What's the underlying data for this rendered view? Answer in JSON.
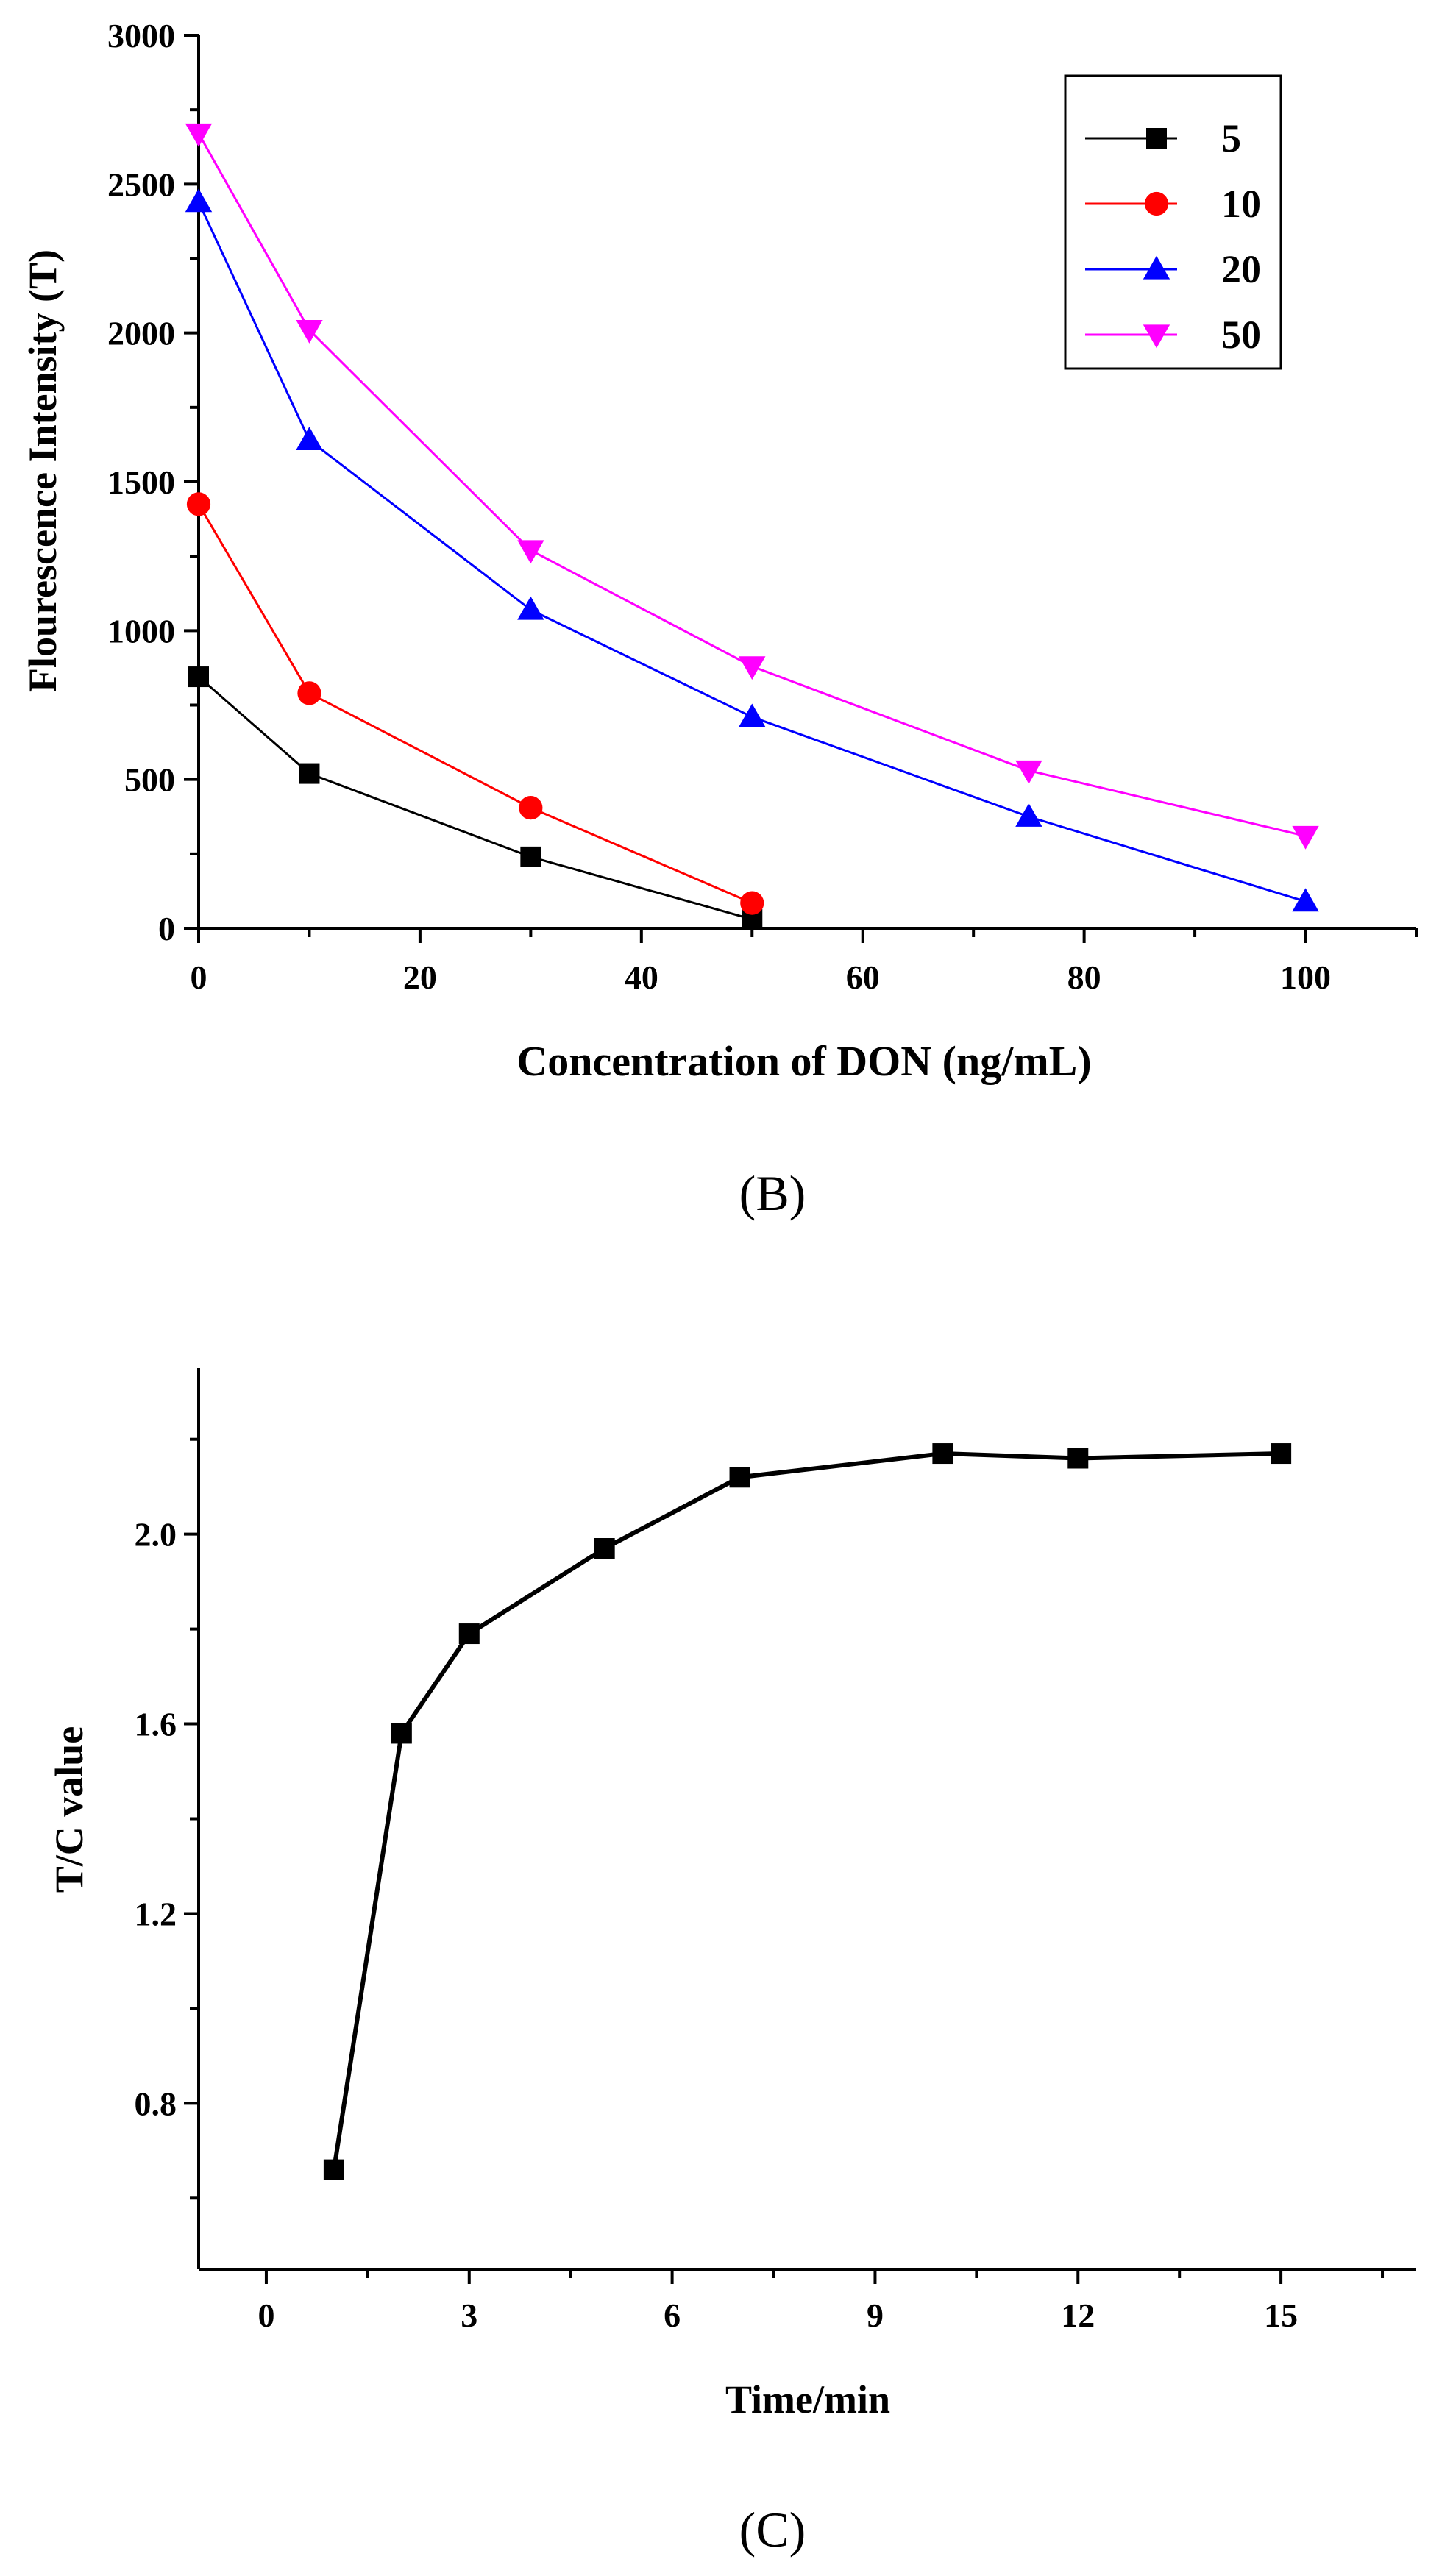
{
  "chart_data": [
    {
      "type": "line",
      "panel_label": "B",
      "xlabel": "Concentration of DON (ng/mL)",
      "ylabel": "Flourescence Intensity (T)",
      "xlim": [
        0,
        110
      ],
      "ylim": [
        0,
        3000
      ],
      "xticks": [
        0,
        20,
        40,
        60,
        80,
        100
      ],
      "yticks": [
        0,
        500,
        1000,
        1500,
        2000,
        2500,
        3000
      ],
      "legend_position": "top-right",
      "series": [
        {
          "name": "5",
          "color": "#000000",
          "marker": "square",
          "x": [
            0,
            10,
            30,
            50
          ],
          "values": [
            845,
            520,
            240,
            30
          ]
        },
        {
          "name": "10",
          "color": "#ff0000",
          "marker": "circle",
          "x": [
            0,
            10,
            30,
            50
          ],
          "values": [
            1425,
            790,
            405,
            85
          ]
        },
        {
          "name": "20",
          "color": "#0000ff",
          "marker": "triangle-up",
          "x": [
            0,
            10,
            30,
            50,
            75,
            100
          ],
          "values": [
            2440,
            1640,
            1070,
            710,
            375,
            90
          ]
        },
        {
          "name": "50",
          "color": "#ff00ff",
          "marker": "triangle-down",
          "x": [
            0,
            10,
            30,
            50,
            75,
            100
          ],
          "values": [
            2670,
            2010,
            1270,
            880,
            530,
            310
          ]
        }
      ]
    },
    {
      "type": "line",
      "panel_label": "C",
      "xlabel": "Time/min",
      "ylabel": "T/C value",
      "xlim": [
        -1,
        17
      ],
      "ylim": [
        0.45,
        2.35
      ],
      "xticks": [
        0,
        3,
        6,
        9,
        12,
        15
      ],
      "yticks": [
        0.8,
        1.2,
        1.6,
        2.0
      ],
      "ytick_labels": [
        "0.8",
        "1.2",
        "1.6",
        "2.0"
      ],
      "series": [
        {
          "name": "T/C",
          "color": "#000000",
          "marker": "square",
          "x": [
            1,
            2,
            3,
            5,
            7,
            10,
            12,
            15
          ],
          "values": [
            0.66,
            1.58,
            1.79,
            1.97,
            2.12,
            2.17,
            2.16,
            2.17
          ]
        }
      ]
    }
  ],
  "captions": {
    "b": "(B)",
    "c": "(C)"
  }
}
